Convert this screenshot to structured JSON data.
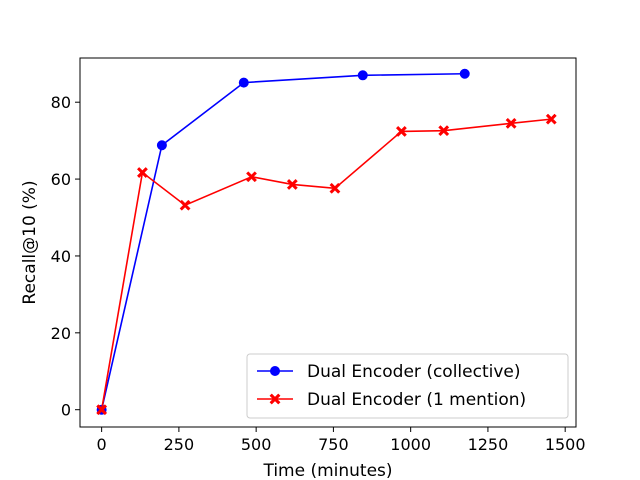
{
  "chart_data": {
    "type": "line",
    "xlabel": "Time (minutes)",
    "ylabel": "Recall@10 (%)",
    "xlim": [
      -70,
      1535
    ],
    "ylim": [
      -4.5,
      91.5
    ],
    "xticks": [
      0,
      250,
      500,
      750,
      1000,
      1250,
      1500
    ],
    "yticks": [
      0,
      20,
      40,
      60,
      80
    ],
    "grid": false,
    "legend_position": "lower-right",
    "series": [
      {
        "name": "Dual Encoder (collective)",
        "color": "#0000ff",
        "marker": "circle",
        "x": [
          0,
          195,
          460,
          845,
          1175
        ],
        "y": [
          0,
          68.8,
          85.1,
          87.0,
          87.4
        ]
      },
      {
        "name": "Dual Encoder (1 mention)",
        "color": "#ff0000",
        "marker": "x",
        "x": [
          0,
          132,
          270,
          485,
          617,
          755,
          970,
          1107,
          1325,
          1455
        ],
        "y": [
          0,
          61.7,
          53.2,
          60.6,
          58.6,
          57.6,
          72.4,
          72.6,
          74.5,
          75.6
        ]
      }
    ]
  }
}
